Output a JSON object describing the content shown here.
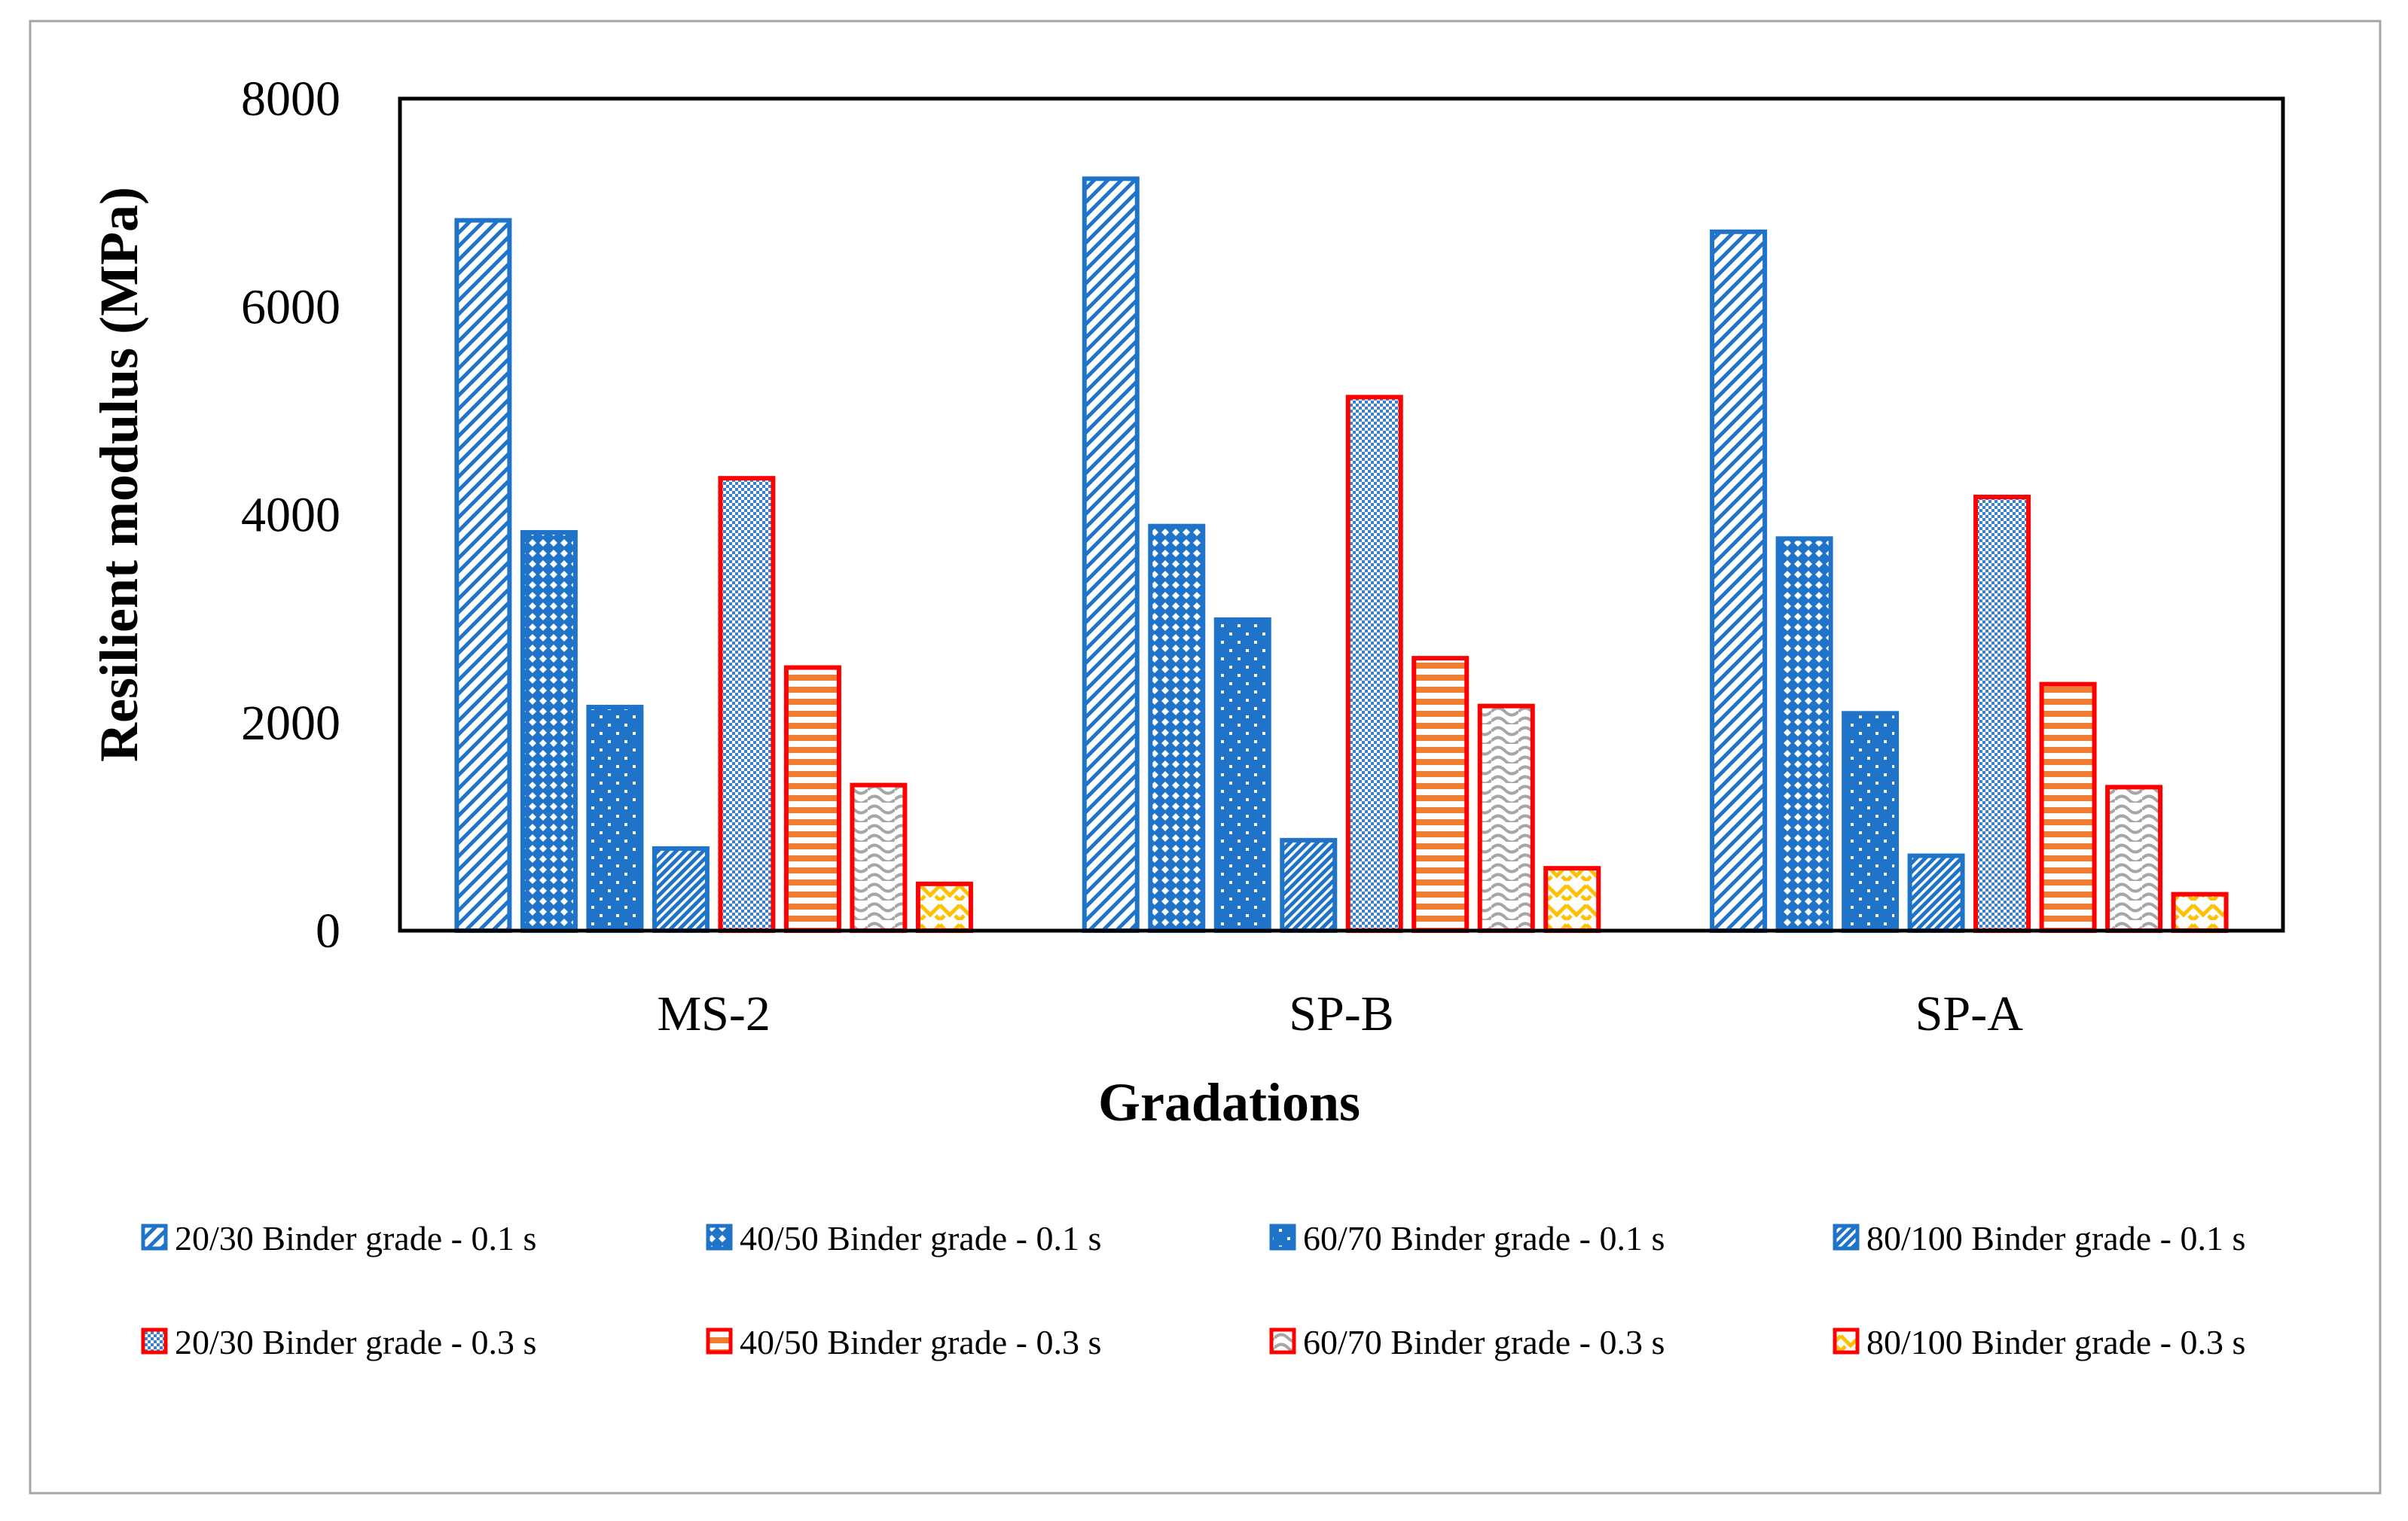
{
  "chart_data": {
    "type": "bar",
    "title": "",
    "xlabel": "Gradations",
    "ylabel": "Resilient modulus (MPa)",
    "ylim": [
      0,
      8000
    ],
    "yticks": [
      0,
      2000,
      4000,
      6000,
      8000
    ],
    "yticks_labels": [
      "0",
      "2000",
      "4000",
      "6000",
      "8000"
    ],
    "categories": [
      "MS-2",
      "SP-B",
      "SP-A"
    ],
    "grid": false,
    "legend_position": "bottom",
    "series": [
      {
        "name": "20/30 Binder grade - 0.1 s",
        "values": [
          6830,
          7230,
          6720
        ],
        "fill": "#1f74c9",
        "edge": "#1f74c9",
        "pattern": "diag-wide"
      },
      {
        "name": "40/50 Binder grade - 0.1 s",
        "values": [
          3830,
          3890,
          3770
        ],
        "fill": "#1f74c9",
        "edge": "#1f74c9",
        "pattern": "diamond"
      },
      {
        "name": "60/70 Binder grade - 0.1 s",
        "values": [
          2150,
          2990,
          2090
        ],
        "fill": "#1f74c9",
        "edge": "#1f74c9",
        "pattern": "dots"
      },
      {
        "name": "80/100 Binder grade - 0.1 s",
        "values": [
          790,
          870,
          720
        ],
        "fill": "#1f74c9",
        "edge": "#1f74c9",
        "pattern": "diag-dense"
      },
      {
        "name": "20/30 Binder grade - 0.3 s",
        "values": [
          4350,
          5130,
          4170
        ],
        "fill": "#3d82c9",
        "edge": "#ff0000",
        "pattern": "checker"
      },
      {
        "name": "40/50 Binder grade - 0.3 s",
        "values": [
          2530,
          2620,
          2370
        ],
        "fill": "#ed7d31",
        "edge": "#ff0000",
        "pattern": "hstripe"
      },
      {
        "name": "60/70 Binder grade - 0.3 s",
        "values": [
          1400,
          2160,
          1380
        ],
        "fill": "#a6a6a6",
        "edge": "#ff0000",
        "pattern": "wave"
      },
      {
        "name": "80/100 Binder grade - 0.3 s",
        "values": [
          450,
          600,
          350
        ],
        "fill": "#ffc000",
        "edge": "#ff0000",
        "pattern": "zigzag"
      }
    ]
  }
}
